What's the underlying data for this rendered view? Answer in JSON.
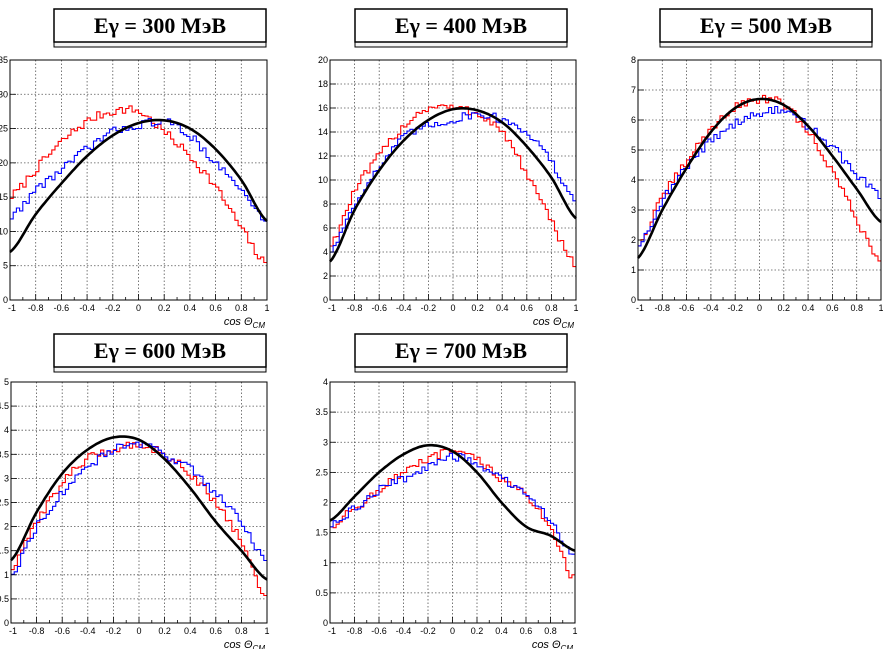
{
  "chart_data": [
    {
      "type": "line",
      "title": "Eγ = 300 МэВ",
      "xlabel": "cos Θ_CM",
      "xlim": [
        -1,
        1
      ],
      "ylim": [
        0,
        35
      ],
      "grid": true,
      "yticks": [
        0,
        5,
        10,
        15,
        20,
        25,
        30,
        35
      ],
      "series": [
        {
          "color": "#ff0000",
          "style": "histogram",
          "x": [
            -1,
            -0.8,
            -0.6,
            -0.4,
            -0.2,
            0,
            0.2,
            0.4,
            0.6,
            0.8,
            1
          ],
          "y": [
            15,
            19,
            23,
            26,
            27.5,
            27.5,
            24.5,
            21,
            16.5,
            10.5,
            5
          ]
        },
        {
          "color": "#0000ff",
          "style": "histogram",
          "x": [
            -1,
            -0.8,
            -0.6,
            -0.4,
            -0.2,
            0,
            0.2,
            0.4,
            0.6,
            0.8,
            1
          ],
          "y": [
            12,
            16,
            19,
            22,
            24.5,
            25.5,
            26,
            24,
            20,
            16,
            11.5
          ]
        },
        {
          "color": "#000000",
          "style": "smooth",
          "x": [
            -1,
            -0.8,
            -0.6,
            -0.4,
            -0.2,
            0,
            0.2,
            0.4,
            0.6,
            0.8,
            1
          ],
          "y": [
            7,
            12.5,
            17,
            21,
            24,
            25.8,
            26.2,
            25,
            22,
            17.5,
            11.5
          ]
        }
      ]
    },
    {
      "type": "line",
      "title": "Eγ = 400 МэВ",
      "xlabel": "cos Θ_CM",
      "xlim": [
        -1,
        1
      ],
      "ylim": [
        0,
        20
      ],
      "grid": true,
      "yticks": [
        0,
        2,
        4,
        6,
        8,
        10,
        12,
        14,
        16,
        18,
        20
      ],
      "series": [
        {
          "color": "#ff0000",
          "style": "histogram",
          "x": [
            -1,
            -0.8,
            -0.6,
            -0.4,
            -0.2,
            0,
            0.2,
            0.4,
            0.6,
            0.8,
            1
          ],
          "y": [
            4.5,
            9,
            12,
            14.5,
            16,
            16,
            15.5,
            14,
            10.5,
            6.5,
            3
          ]
        },
        {
          "color": "#0000ff",
          "style": "histogram",
          "x": [
            -1,
            -0.8,
            -0.6,
            -0.4,
            -0.2,
            0,
            0.2,
            0.4,
            0.6,
            0.8,
            1
          ],
          "y": [
            4,
            8,
            11,
            13.5,
            14.5,
            15,
            15.5,
            15,
            14,
            11.5,
            8
          ]
        },
        {
          "color": "#000000",
          "style": "smooth",
          "x": [
            -1,
            -0.8,
            -0.6,
            -0.4,
            -0.2,
            0,
            0.2,
            0.4,
            0.6,
            0.8,
            1
          ],
          "y": [
            3.2,
            7.5,
            10.8,
            13.3,
            15,
            15.9,
            15.8,
            14.8,
            12.8,
            10.2,
            6.8
          ]
        }
      ]
    },
    {
      "type": "line",
      "title": "Eγ = 500 МэВ",
      "xlabel": "",
      "xlim": [
        -1,
        1
      ],
      "ylim": [
        0,
        8
      ],
      "grid": true,
      "yticks": [
        0,
        1,
        2,
        3,
        4,
        5,
        6,
        7,
        8
      ],
      "series": [
        {
          "color": "#ff0000",
          "style": "histogram",
          "x": [
            -1,
            -0.8,
            -0.6,
            -0.4,
            -0.2,
            0,
            0.2,
            0.4,
            0.6,
            0.8,
            1
          ],
          "y": [
            1.8,
            3.4,
            4.6,
            5.7,
            6.4,
            6.7,
            6.5,
            5.6,
            4.3,
            2.7,
            1.3
          ]
        },
        {
          "color": "#0000ff",
          "style": "histogram",
          "x": [
            -1,
            -0.8,
            -0.6,
            -0.4,
            -0.2,
            0,
            0.2,
            0.4,
            0.6,
            0.8,
            1
          ],
          "y": [
            1.8,
            3.3,
            4.4,
            5.3,
            5.9,
            6.2,
            6.3,
            5.8,
            5.1,
            4.2,
            3.5
          ]
        },
        {
          "color": "#000000",
          "style": "smooth",
          "x": [
            -1,
            -0.8,
            -0.6,
            -0.4,
            -0.2,
            0,
            0.2,
            0.4,
            0.6,
            0.8,
            1
          ],
          "y": [
            1.4,
            3,
            4.4,
            5.6,
            6.4,
            6.7,
            6.5,
            5.8,
            4.8,
            3.7,
            2.6
          ]
        }
      ]
    },
    {
      "type": "line",
      "title": "Eγ = 600 МэВ",
      "xlabel": "cos Θ_CM",
      "xlim": [
        -1,
        1
      ],
      "ylim": [
        0,
        5
      ],
      "grid": true,
      "yticks": [
        0,
        0.5,
        1,
        1.5,
        2,
        2.5,
        3,
        3.5,
        4,
        4.5,
        5
      ],
      "series": [
        {
          "color": "#ff0000",
          "style": "histogram",
          "x": [
            -1,
            -0.8,
            -0.6,
            -0.4,
            -0.2,
            0,
            0.2,
            0.4,
            0.6,
            0.8,
            1
          ],
          "y": [
            1.1,
            2.1,
            2.9,
            3.4,
            3.6,
            3.7,
            3.5,
            3.1,
            2.5,
            1.7,
            0.5
          ]
        },
        {
          "color": "#0000ff",
          "style": "histogram",
          "x": [
            -1,
            -0.8,
            -0.6,
            -0.4,
            -0.2,
            0,
            0.2,
            0.4,
            0.6,
            0.8,
            1
          ],
          "y": [
            1,
            2,
            2.7,
            3.2,
            3.6,
            3.7,
            3.5,
            3.2,
            2.7,
            2.1,
            1.3
          ]
        },
        {
          "color": "#000000",
          "style": "smooth",
          "x": [
            -1,
            -0.8,
            -0.6,
            -0.4,
            -0.2,
            0,
            0.2,
            0.4,
            0.6,
            0.8,
            1
          ],
          "y": [
            1.3,
            2.3,
            3.1,
            3.6,
            3.85,
            3.8,
            3.4,
            2.8,
            2.1,
            1.5,
            0.9
          ]
        }
      ]
    },
    {
      "type": "line",
      "title": "Eγ = 700 МэВ",
      "xlabel": "cos Θ_CM",
      "xlim": [
        -1,
        1
      ],
      "ylim": [
        0,
        4
      ],
      "grid": true,
      "yticks": [
        0,
        0.5,
        1,
        1.5,
        2,
        2.5,
        3,
        3.5,
        4
      ],
      "series": [
        {
          "color": "#ff0000",
          "style": "histogram",
          "x": [
            -1,
            -0.8,
            -0.6,
            -0.4,
            -0.2,
            0,
            0.2,
            0.4,
            0.6,
            0.8,
            1
          ],
          "y": [
            1.6,
            1.9,
            2.2,
            2.5,
            2.7,
            2.85,
            2.7,
            2.4,
            2.1,
            1.6,
            0.7
          ]
        },
        {
          "color": "#0000ff",
          "style": "histogram",
          "x": [
            -1,
            -0.8,
            -0.6,
            -0.4,
            -0.2,
            0,
            0.2,
            0.4,
            0.6,
            0.8,
            1
          ],
          "y": [
            1.6,
            1.9,
            2.2,
            2.4,
            2.6,
            2.75,
            2.65,
            2.4,
            2.1,
            1.7,
            1.1
          ]
        },
        {
          "color": "#000000",
          "style": "smooth",
          "x": [
            -1,
            -0.8,
            -0.6,
            -0.4,
            -0.2,
            0,
            0.2,
            0.4,
            0.6,
            0.8,
            1
          ],
          "y": [
            1.7,
            2.1,
            2.5,
            2.8,
            2.95,
            2.85,
            2.5,
            2,
            1.6,
            1.45,
            1.2
          ]
        }
      ]
    }
  ]
}
